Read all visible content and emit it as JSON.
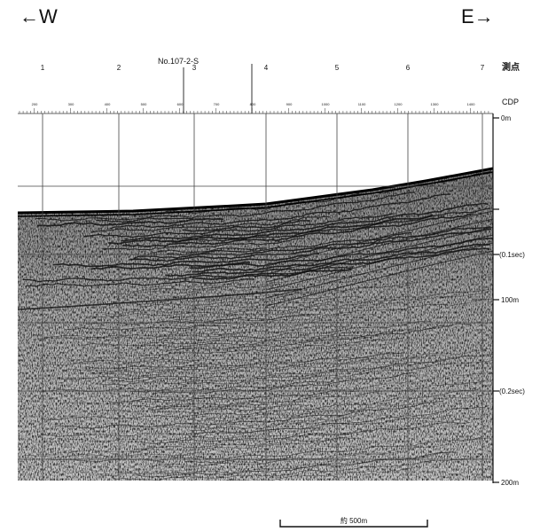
{
  "direction": {
    "west_label": "←W",
    "east_label": "E→"
  },
  "line_id": "No.107-2-S",
  "station_header": "測点",
  "cdp_header": "CDP",
  "stations": [
    "1",
    "2",
    "3",
    "4",
    "5",
    "6",
    "7"
  ],
  "cdp_ticks": [
    "200",
    "300",
    "400",
    "500",
    "600",
    "700",
    "800",
    "900",
    "1000",
    "1100",
    "1200",
    "1300",
    "1400"
  ],
  "depth_labels": [
    "0m",
    "(0.1sec)",
    "100m",
    "(0.2sec)",
    "200m"
  ],
  "scale_bar_label": "約 500m",
  "colors": {
    "ink": "#111111",
    "grid": "#444444",
    "background": "#ffffff"
  }
}
